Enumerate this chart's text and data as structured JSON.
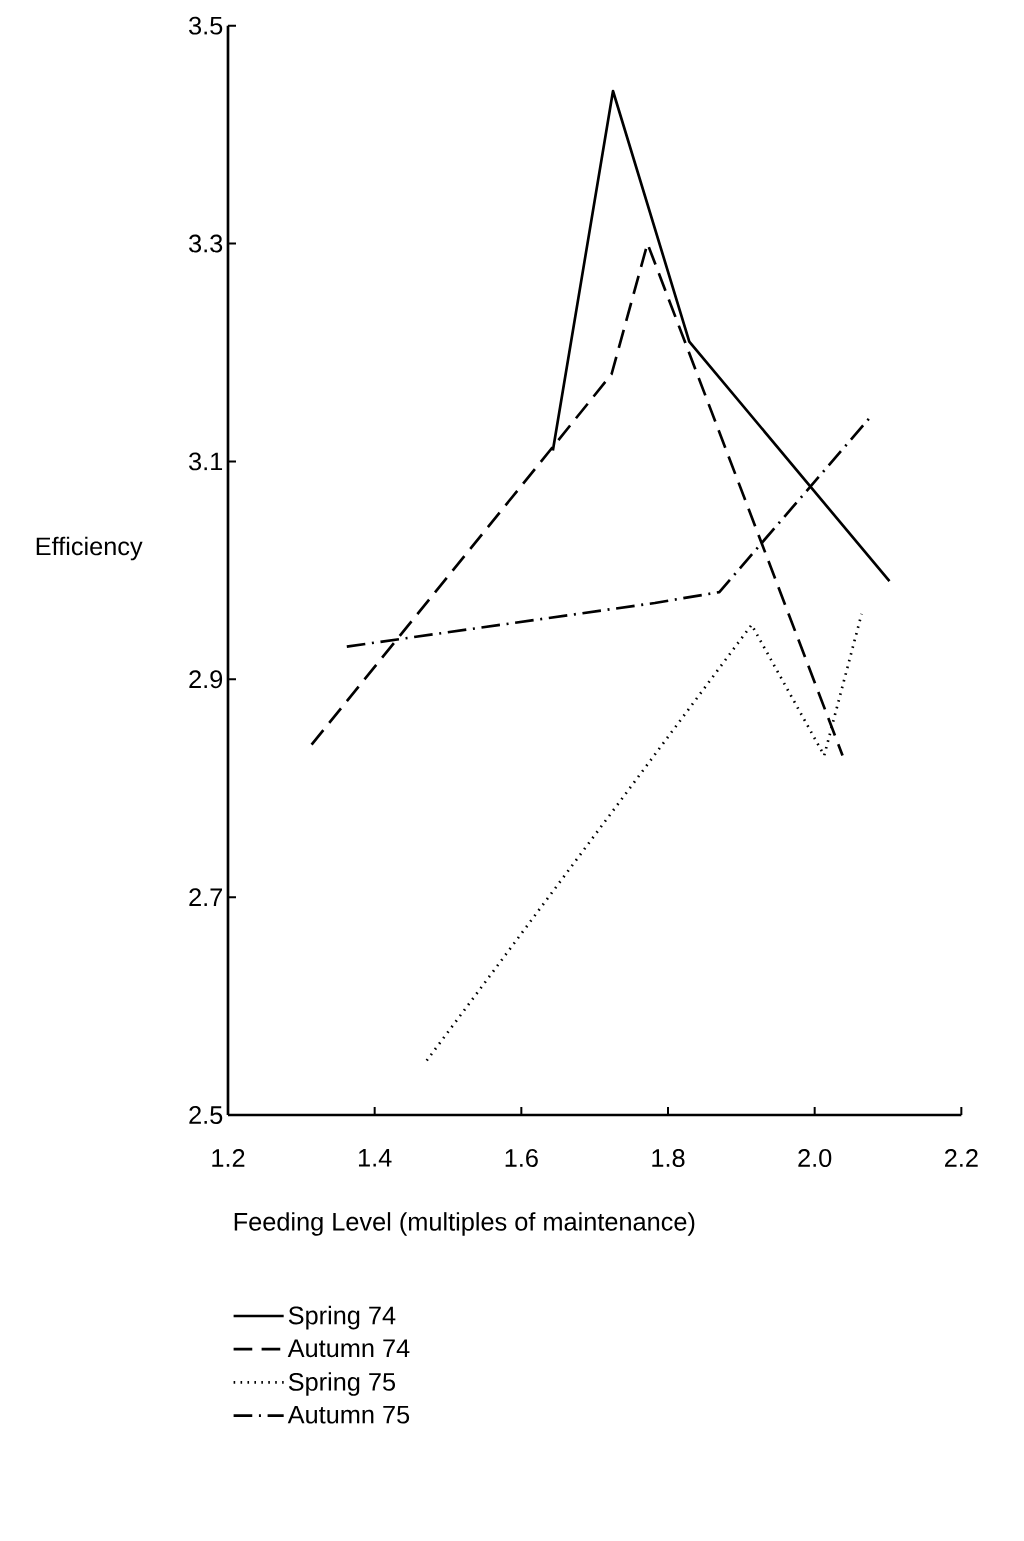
{
  "chart_data": {
    "type": "line",
    "xlabel": "Feeding Level (multiples of maintenance)",
    "ylabel": "Efficiency",
    "xlim": [
      1.2,
      2.2
    ],
    "ylim": [
      2.5,
      3.5
    ],
    "xticks": [
      1.2,
      1.4,
      1.6,
      1.8,
      {
        "value": 2.0,
        "label": "2.0"
      },
      2.2
    ],
    "yticks": [
      2.5,
      2.7,
      2.9,
      3.1,
      3.3,
      3.5
    ],
    "grid": false,
    "legend": "bottom left",
    "marker": "none",
    "series": [
      {
        "name": "Spring 74",
        "color": "#000000",
        "line_style": "solid",
        "x": [
          1.643,
          1.725,
          1.829,
          2.102
        ],
        "values": [
          3.11,
          3.44,
          3.21,
          2.99
        ]
      },
      {
        "name": "Autumn 74",
        "color": "#000000",
        "line_style": "dashed",
        "x": [
          1.314,
          1.639,
          1.723,
          1.772,
          2.038
        ],
        "values": [
          2.84,
          3.11,
          3.18,
          3.3,
          2.83
        ]
      },
      {
        "name": "Spring 75",
        "color": "#000000",
        "line_style": "dotted",
        "x": [
          1.471,
          1.914,
          2.013,
          2.064
        ],
        "values": [
          2.55,
          2.95,
          2.83,
          2.96
        ]
      },
      {
        "name": "Autumn 75",
        "color": "#000000",
        "line_style": "dashdot",
        "x": [
          1.362,
          1.782,
          1.87,
          2.075
        ],
        "values": [
          2.93,
          2.97,
          2.98,
          3.14
        ]
      }
    ]
  }
}
